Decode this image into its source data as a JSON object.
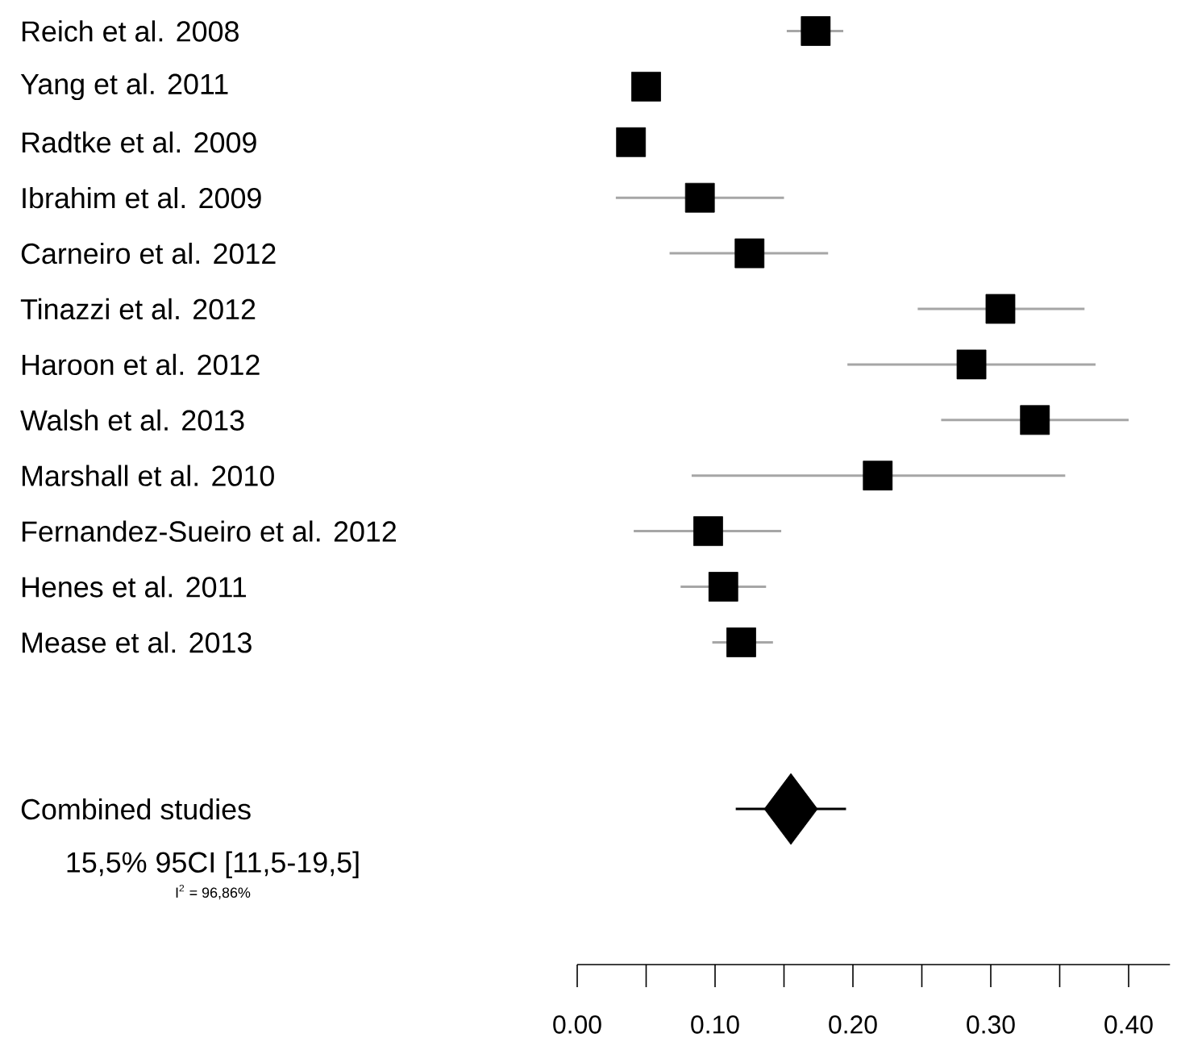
{
  "chart_data": {
    "type": "scatter",
    "orientation": "horizontal",
    "categories": [
      "Reich et al. 2008",
      "Yang et al. 2011",
      "Radtke et al. 2009",
      "Ibrahim et al. 2009",
      "Carneiro et al. 2012",
      "Tinazzi et al. 2012",
      "Haroon et al. 2012",
      "Walsh et al. 2013",
      "Marshall et al. 2010",
      "Fernandez-Sueiro et al. 2012",
      "Henes et al. 2011",
      "Mease et al. 2013",
      null,
      null,
      "Combined studies"
    ],
    "series": [
      {
        "color": "#000000",
        "marker": "square",
        "values": [
          0.173,
          0.05,
          0.039,
          0.089,
          0.125,
          0.307,
          0.286,
          0.332,
          0.218,
          0.095,
          0.106,
          0.119,
          null,
          null,
          null
        ],
        "errors": [
          [
            0.152,
            0.193
          ],
          null,
          null,
          [
            0.028,
            0.15
          ],
          [
            0.067,
            0.182
          ],
          [
            0.247,
            0.368
          ],
          [
            0.196,
            0.376
          ],
          [
            0.264,
            0.4
          ],
          [
            0.083,
            0.354
          ],
          [
            0.041,
            0.148
          ],
          [
            0.075,
            0.137
          ],
          [
            0.098,
            0.142
          ],
          null,
          null,
          null
        ]
      },
      {
        "color": "#000000",
        "marker": "diamond",
        "values": [
          null,
          null,
          null,
          null,
          null,
          null,
          null,
          null,
          null,
          null,
          null,
          null,
          null,
          null,
          0.155
        ],
        "errors": [
          null,
          null,
          null,
          null,
          null,
          null,
          null,
          null,
          null,
          null,
          null,
          null,
          null,
          null,
          [
            0.115,
            0.195
          ]
        ]
      }
    ],
    "annotations": [
      "15,5% 95CI [11,5-19,5]",
      "I$^{2}$ = 96,86%"
    ],
    "xlim": [
      0,
      0.43
    ],
    "xticks": [
      {
        "value": 0,
        "label": "0.00"
      },
      {
        "value": 0.1,
        "label": "0.10"
      },
      {
        "value": 0.2,
        "label": "0.20"
      },
      {
        "value": 0.3,
        "label": "0.30"
      },
      {
        "value": 0.4,
        "label": "0.40"
      }
    ],
    "grid": false
  }
}
